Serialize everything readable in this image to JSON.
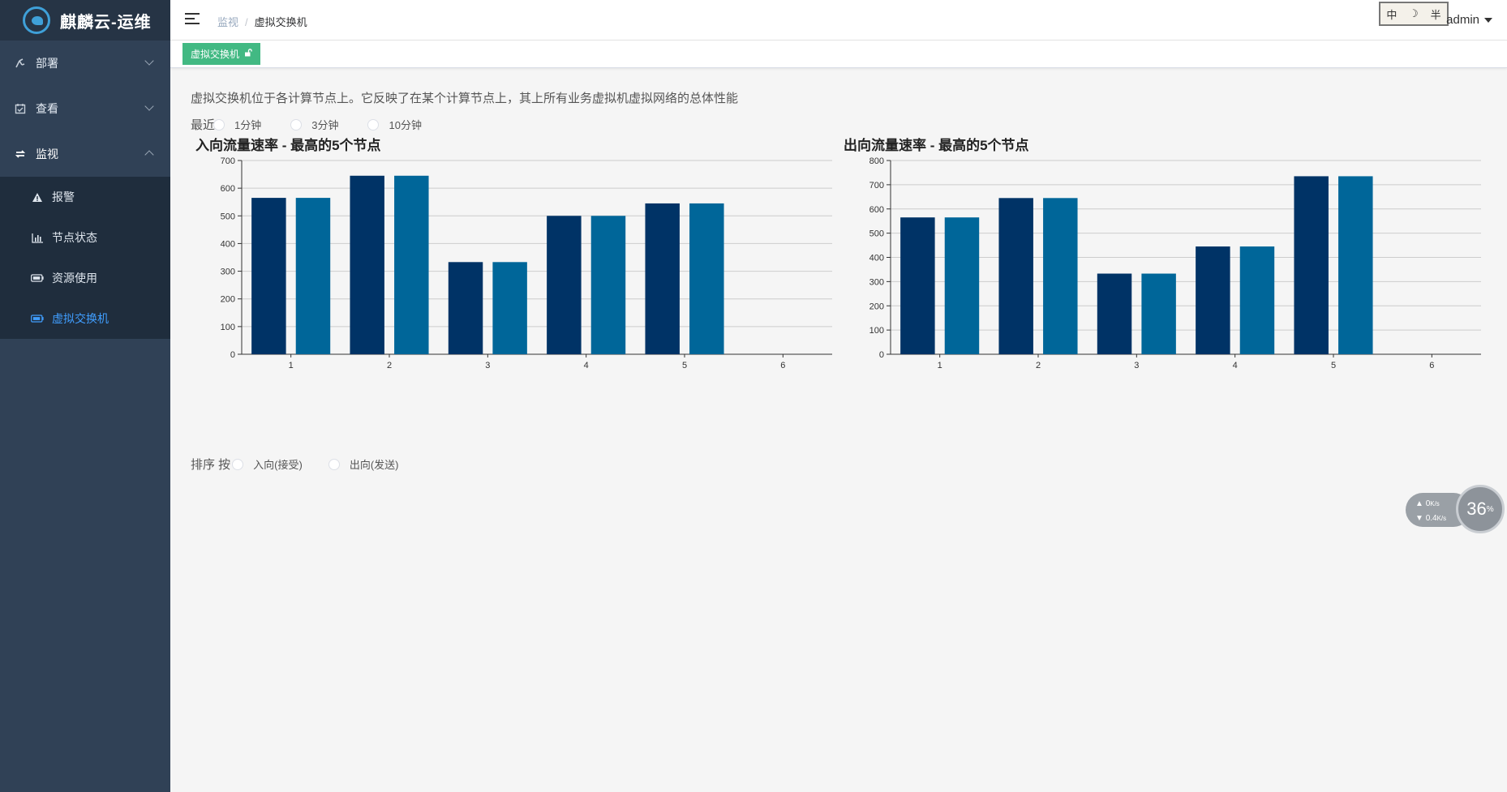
{
  "app": {
    "title": "麒麟云-运维"
  },
  "sidebar": {
    "items": [
      {
        "label": "部署",
        "icon": "deploy-icon",
        "expanded": false
      },
      {
        "label": "查看",
        "icon": "calendar-check-icon",
        "expanded": false
      },
      {
        "label": "监视",
        "icon": "refresh-arrows-icon",
        "expanded": true
      }
    ],
    "submenu": [
      {
        "label": "报警",
        "icon": "warning-icon",
        "active": false
      },
      {
        "label": "节点状态",
        "icon": "bar-chart-icon",
        "active": false
      },
      {
        "label": "资源使用",
        "icon": "battery-icon",
        "active": false
      },
      {
        "label": "虚拟交换机",
        "icon": "battery-icon",
        "active": true
      }
    ]
  },
  "header": {
    "breadcrumb": [
      "监视",
      "虚拟交换机"
    ],
    "ime": [
      "中",
      "☽",
      "半"
    ],
    "user": "admin"
  },
  "tags": [
    {
      "label": "虚拟交换机",
      "icon": "unlock-icon"
    }
  ],
  "main": {
    "description": "虚拟交换机位于各计算节点上。它反映了在某个计算节点上，其上所有业务虚拟机虚拟网络的总体性能",
    "recent": {
      "label": "最近",
      "options": [
        "1分钟",
        "3分钟",
        "10分钟"
      ]
    },
    "sort": {
      "label": "排序 按",
      "options": [
        "入向(接受)",
        "出向(发送)"
      ]
    }
  },
  "speed_widget": {
    "up": "0",
    "down": "0.4",
    "unit": "K/s",
    "percent": "36"
  },
  "colors": {
    "series1": "#003366",
    "series2": "#006699",
    "accent": "#409eff",
    "tag": "#42b983"
  },
  "chart_data": [
    {
      "type": "bar",
      "title": "入向流量速率 - 最高的5个节点",
      "categories": [
        "1",
        "2",
        "3",
        "4",
        "5",
        "6"
      ],
      "series": [
        {
          "values": [
            565,
            645,
            333,
            500,
            545,
            0
          ]
        },
        {
          "values": [
            565,
            645,
            333,
            500,
            545,
            0
          ]
        }
      ],
      "ylim": [
        0,
        700
      ],
      "yticks": [
        0,
        100,
        200,
        300,
        400,
        500,
        600,
        700
      ],
      "grid": true
    },
    {
      "type": "bar",
      "title": "出向流量速率 - 最高的5个节点",
      "categories": [
        "1",
        "2",
        "3",
        "4",
        "5",
        "6"
      ],
      "series": [
        {
          "values": [
            565,
            645,
            333,
            445,
            735,
            0
          ]
        },
        {
          "values": [
            565,
            645,
            333,
            445,
            735,
            0
          ]
        }
      ],
      "ylim": [
        0,
        800
      ],
      "yticks": [
        0,
        100,
        200,
        300,
        400,
        500,
        600,
        700,
        800
      ],
      "grid": true
    }
  ]
}
